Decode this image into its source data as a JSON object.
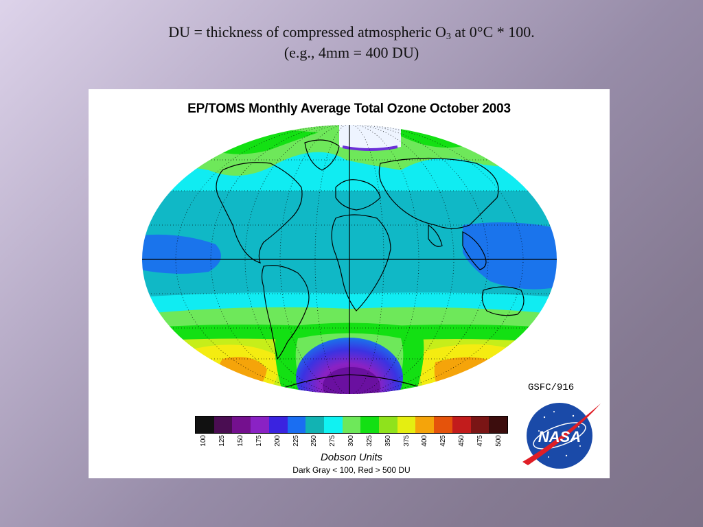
{
  "slide": {
    "caption_line1_pre": "DU = thickness of compressed atmospheric O",
    "caption_line1_sub": "3",
    "caption_line1_post": " at 0°C * 100.",
    "caption_line2": "(e.g., 4mm = 400 DU)"
  },
  "figure": {
    "title": "EP/TOMS Monthly Average Total Ozone October 2003",
    "credit": "GSFC/916",
    "logo_text": "NASA",
    "units_label": "Dobson Units",
    "note": "Dark Gray < 100, Red > 500 DU",
    "colorbar": {
      "ticks": [
        "100",
        "125",
        "150",
        "175",
        "200",
        "225",
        "250",
        "275",
        "300",
        "325",
        "350",
        "375",
        "400",
        "425",
        "450",
        "475",
        "500"
      ],
      "colors": [
        "#111111",
        "#4a0d52",
        "#74108e",
        "#8a22c4",
        "#3a23e0",
        "#1a6ef2",
        "#12b3b3",
        "#10f2f2",
        "#6ee85a",
        "#13e013",
        "#8fe21c",
        "#e5ee11",
        "#f5a40a",
        "#e5530b",
        "#c21c1c",
        "#7a1515",
        "#3c0d0d"
      ]
    },
    "map_colors": {
      "tropics": "#10b8c6",
      "equator_low": "#1a74ec",
      "midlat": "#10ecf2",
      "high_belt": "#6ee85a",
      "green": "#13e013",
      "yellow_green": "#c6ee1a",
      "yellow": "#f4ec11",
      "orange": "#f5a40a",
      "hole_blue": "#2a34e0",
      "hole_violet": "#8a22c4",
      "hole_core": "#6a10a0"
    }
  }
}
